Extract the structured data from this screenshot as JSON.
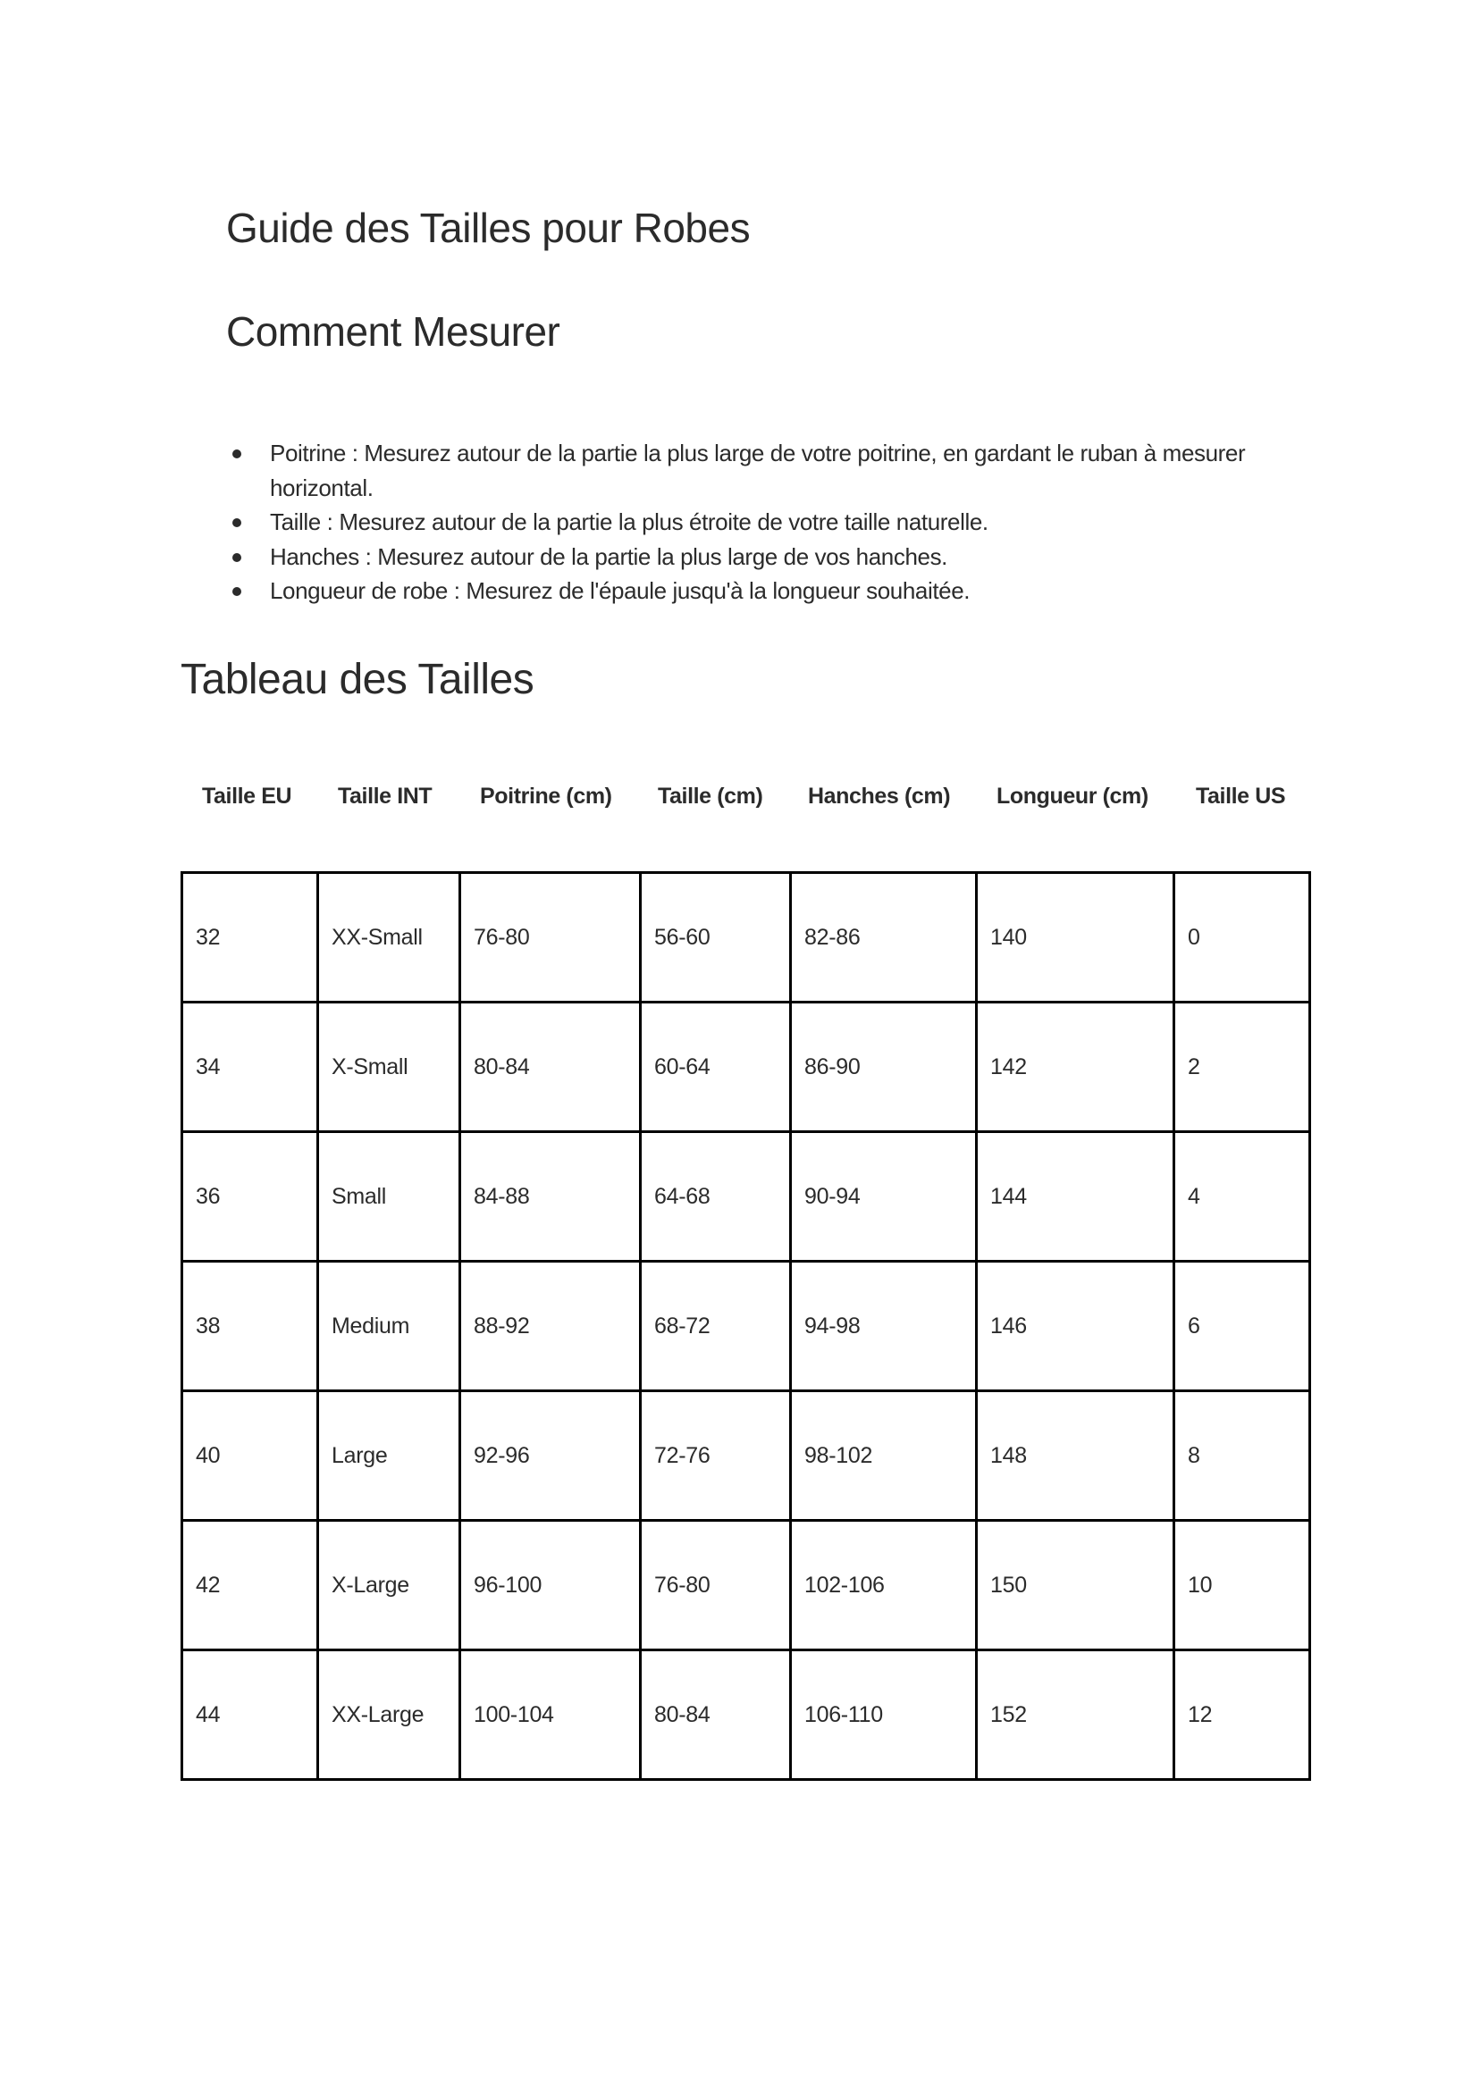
{
  "title": "Guide des Tailles pour Robes",
  "how_to_measure": {
    "heading": "Comment Mesurer",
    "items": [
      "Poitrine : Mesurez autour de la partie la plus large de votre poitrine, en gardant le ruban à mesurer horizontal.",
      "Taille : Mesurez autour de la partie la plus étroite de votre taille naturelle.",
      "Hanches : Mesurez autour de la partie la plus large de vos hanches.",
      "Longueur de robe : Mesurez de l'épaule jusqu'à la longueur souhaitée."
    ]
  },
  "size_chart": {
    "heading": "Tableau des Tailles",
    "columns": [
      "Taille EU",
      "Taille INT",
      "Poitrine (cm)",
      "Taille (cm)",
      "Hanches (cm)",
      "Longueur (cm)",
      "Taille US"
    ],
    "rows": [
      [
        "32",
        "XX-Small",
        "76-80",
        "56-60",
        "82-86",
        "140",
        "0"
      ],
      [
        "34",
        "X-Small",
        "80-84",
        "60-64",
        "86-90",
        "142",
        "2"
      ],
      [
        "36",
        "Small",
        "84-88",
        "64-68",
        "90-94",
        "144",
        "4"
      ],
      [
        "38",
        "Medium",
        "88-92",
        "68-72",
        "94-98",
        "146",
        "6"
      ],
      [
        "40",
        "Large",
        "92-96",
        "72-76",
        "98-102",
        "148",
        "8"
      ],
      [
        "42",
        "X-Large",
        "96-100",
        "76-80",
        "102-106",
        "150",
        "10"
      ],
      [
        "44",
        "XX-Large",
        "100-104",
        "80-84",
        "106-110",
        "152",
        "12"
      ]
    ]
  }
}
